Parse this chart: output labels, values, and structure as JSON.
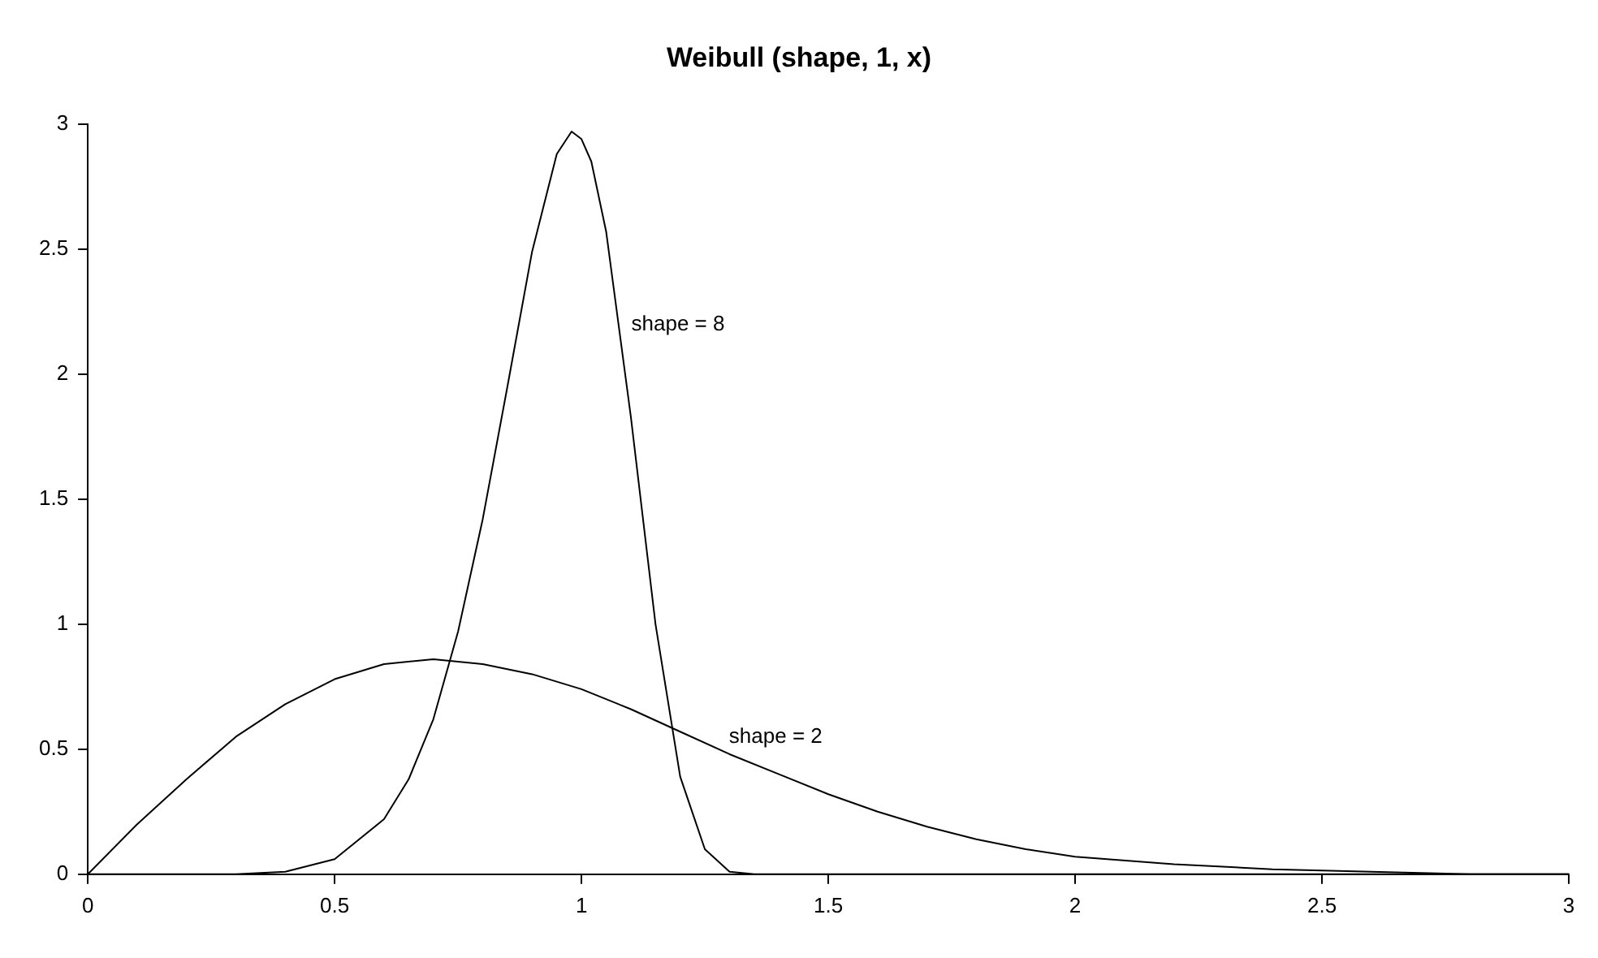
{
  "chart_data": {
    "type": "line",
    "title": "Weibull (shape, 1, x)",
    "series": [
      {
        "color": "#000000",
        "x": [
          0,
          0.1,
          0.2,
          0.3,
          0.4,
          0.5,
          0.6,
          0.7,
          0.8,
          0.9,
          1.0,
          1.1,
          1.2,
          1.3,
          1.4,
          1.5,
          1.6,
          1.7,
          1.8,
          1.9,
          2.0,
          2.2,
          2.4,
          2.6,
          2.8,
          3.0
        ],
        "values": [
          0,
          0.2,
          0.38,
          0.55,
          0.68,
          0.78,
          0.84,
          0.86,
          0.84,
          0.8,
          0.74,
          0.66,
          0.57,
          0.48,
          0.4,
          0.32,
          0.25,
          0.19,
          0.14,
          0.1,
          0.07,
          0.04,
          0.02,
          0.01,
          0,
          0
        ]
      },
      {
        "color": "#000000",
        "x": [
          0,
          0.3,
          0.4,
          0.5,
          0.6,
          0.65,
          0.7,
          0.75,
          0.8,
          0.85,
          0.9,
          0.95,
          0.98,
          1.0,
          1.02,
          1.05,
          1.1,
          1.15,
          1.2,
          1.25,
          1.3,
          1.35,
          1.5,
          2.0,
          3.0
        ],
        "values": [
          0,
          0,
          0.01,
          0.06,
          0.22,
          0.38,
          0.62,
          0.97,
          1.42,
          1.95,
          2.49,
          2.88,
          2.97,
          2.94,
          2.85,
          2.57,
          1.83,
          1.0,
          0.39,
          0.1,
          0.01,
          0,
          0,
          0,
          0
        ]
      }
    ],
    "annotations": [
      "shape = 8",
      "shape = 2"
    ],
    "xlim": [
      0,
      3
    ],
    "xticks": [
      0,
      0.5,
      1,
      1.5,
      2,
      2.5,
      3
    ],
    "ylim": [
      0,
      3
    ],
    "yticks": [
      0,
      0.5,
      1,
      1.5,
      2,
      2.5,
      3
    ],
    "grid": false,
    "legend": false,
    "marker": "none",
    "line_style": "solid"
  }
}
